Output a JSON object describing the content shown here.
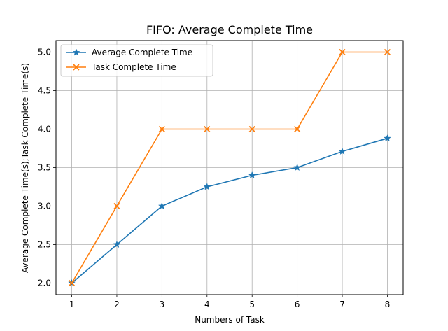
{
  "chart_data": {
    "type": "line",
    "title": "FIFO: Average Complete Time",
    "xlabel": "Numbers of Task",
    "ylabel": "Average Complete Time(s);Task Complete Time(s)",
    "x": [
      1,
      2,
      3,
      4,
      5,
      6,
      7,
      8
    ],
    "xticks": [
      "1",
      "2",
      "3",
      "4",
      "5",
      "6",
      "7",
      "8"
    ],
    "yticks": [
      "2.0",
      "2.5",
      "3.0",
      "3.5",
      "4.0",
      "4.5",
      "5.0"
    ],
    "xlim": [
      0.65,
      8.35
    ],
    "ylim": [
      1.85,
      5.15
    ],
    "grid": true,
    "legend_position": "top-left",
    "series": [
      {
        "name": "Average Complete Time",
        "color": "#1f77b4",
        "marker": "star",
        "values": [
          2.0,
          2.5,
          3.0,
          3.25,
          3.4,
          3.5,
          3.71,
          3.88
        ]
      },
      {
        "name": "Task Complete Time",
        "color": "#ff7f0e",
        "marker": "x",
        "values": [
          2.0,
          3.0,
          4.0,
          4.0,
          4.0,
          4.0,
          5.0,
          5.0
        ]
      }
    ]
  }
}
